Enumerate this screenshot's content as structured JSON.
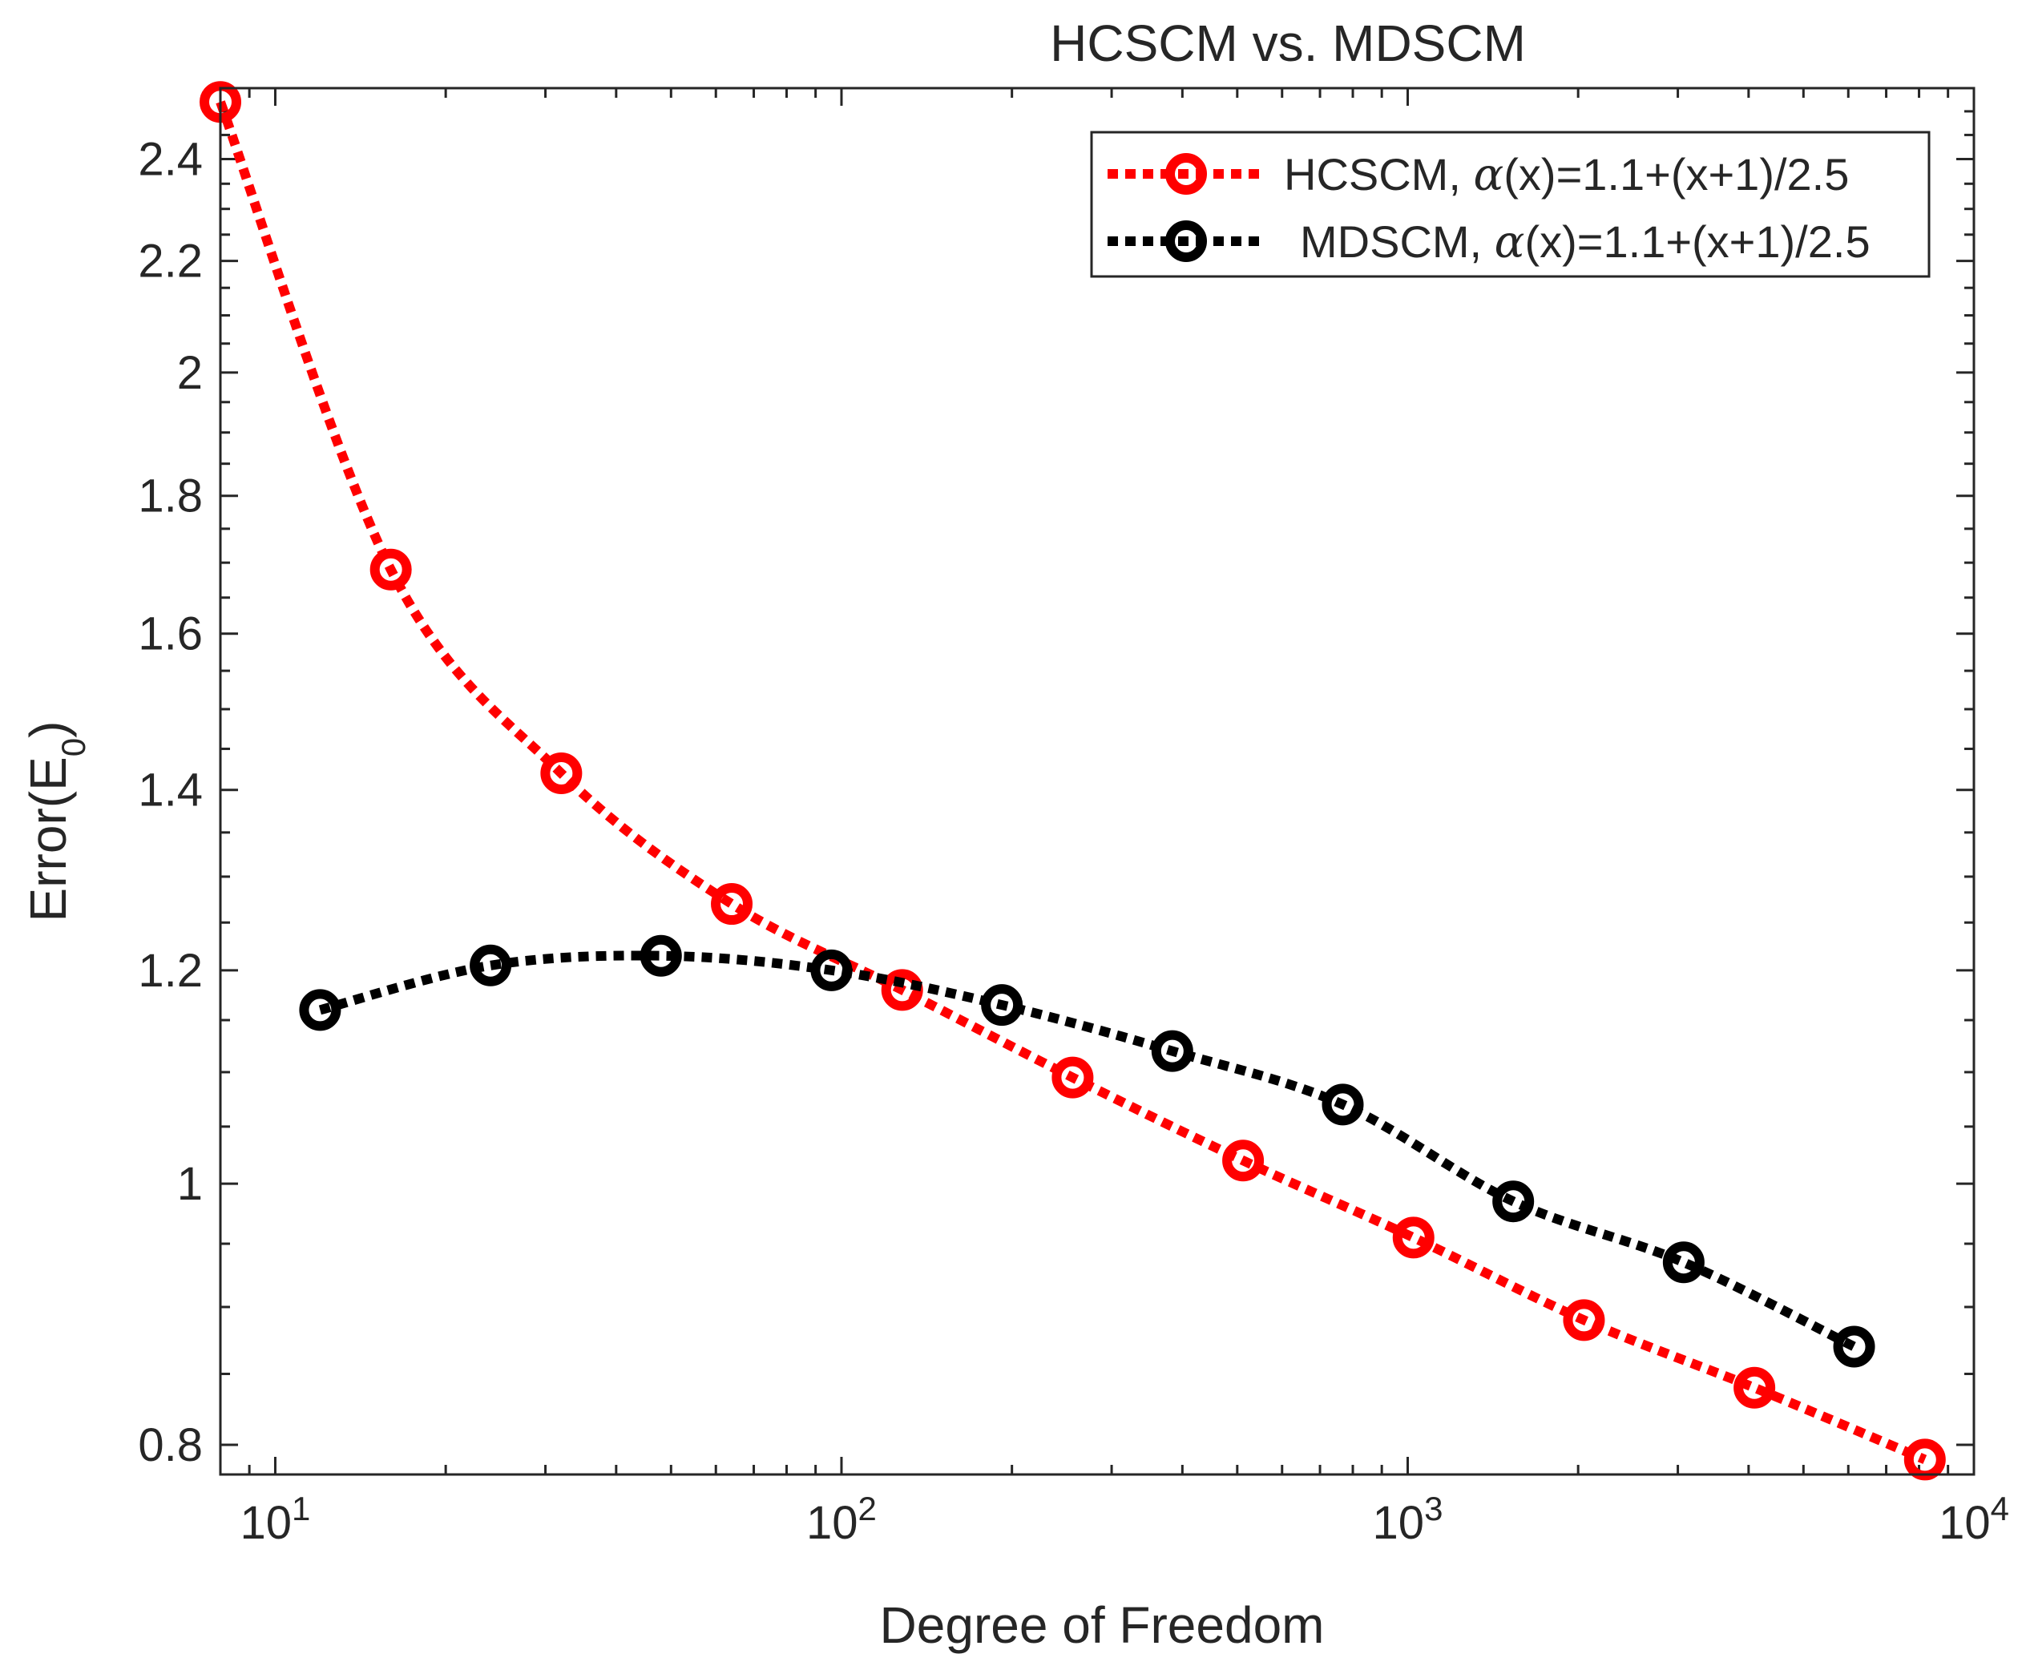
{
  "chart_data": {
    "type": "line",
    "title": "HCSCM vs. MDSCM",
    "xlabel": "Degree of Freedom",
    "ylabel": {
      "prefix": "Error(E",
      "subscript": "0",
      "suffix": ")"
    },
    "xscale": "log",
    "yscale": "log",
    "xlim": [
      8,
      10000
    ],
    "ylim": [
      0.78,
      2.55
    ],
    "x_ticks": [
      {
        "value": 10,
        "base": "10",
        "exp": "1"
      },
      {
        "value": 100,
        "base": "10",
        "exp": "2"
      },
      {
        "value": 1000,
        "base": "10",
        "exp": "3"
      },
      {
        "value": 10000,
        "base": "10",
        "exp": "4"
      }
    ],
    "y_ticks": [
      {
        "value": 0.8,
        "label": "0.8"
      },
      {
        "value": 1.0,
        "label": "1"
      },
      {
        "value": 1.2,
        "label": "1.2"
      },
      {
        "value": 1.4,
        "label": "1.4"
      },
      {
        "value": 1.6,
        "label": "1.6"
      },
      {
        "value": 1.8,
        "label": "1.8"
      },
      {
        "value": 2.0,
        "label": "2"
      },
      {
        "value": 2.2,
        "label": "2.2"
      },
      {
        "value": 2.4,
        "label": "2.4"
      }
    ],
    "legend_position": "top-right",
    "series": [
      {
        "name": "HCSCM",
        "legend": {
          "prefix": "HCSCM, ",
          "symbol": "α",
          "suffix": "(x)=1.1+(x+1)/2.5"
        },
        "color": "#ff0000",
        "marker": "circle",
        "line_style": "dotted",
        "x": [
          8,
          16,
          32,
          64,
          128,
          256,
          512,
          1024,
          2048,
          4096,
          8192
        ],
        "y": [
          2.52,
          1.69,
          1.42,
          1.27,
          1.18,
          1.095,
          1.02,
          0.955,
          0.89,
          0.84,
          0.79
        ]
      },
      {
        "name": "MDSCM",
        "legend": {
          "prefix": "MDSCM, ",
          "symbol": "α",
          "suffix": "(x)=1.1+(x+1)/2.5"
        },
        "color": "#000000",
        "marker": "circle",
        "line_style": "dotted",
        "x": [
          12,
          24,
          48,
          96,
          192,
          384,
          768,
          1536,
          3072,
          6144
        ],
        "y": [
          1.16,
          1.205,
          1.215,
          1.2,
          1.165,
          1.12,
          1.07,
          0.985,
          0.935,
          0.87
        ]
      }
    ]
  }
}
